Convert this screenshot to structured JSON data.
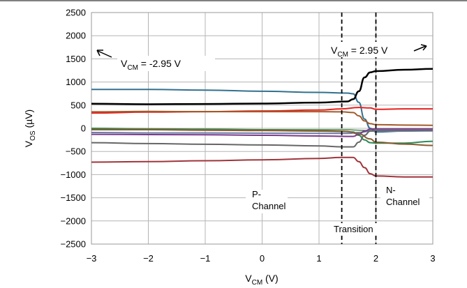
{
  "chart_data": {
    "type": "line",
    "xlabel_main": "V",
    "xlabel_sub": "CM",
    "xlabel_unit": " (V)",
    "ylabel_main": "V",
    "ylabel_sub": "OS",
    "ylabel_unit": " (µV)",
    "xlim": [
      -3,
      3
    ],
    "ylim": [
      -2500,
      2500
    ],
    "x_ticks": [
      -3,
      -2,
      -1,
      0,
      1,
      2,
      3
    ],
    "x_tick_labels": [
      "−3",
      "−2",
      "−1",
      "0",
      "1",
      "2",
      "3"
    ],
    "y_ticks": [
      2500,
      2000,
      1500,
      1000,
      500,
      0,
      -500,
      -1000,
      -1500,
      -2000,
      -2500
    ],
    "y_tick_labels": [
      "2500",
      "2000",
      "1500",
      "1000",
      "500",
      "0",
      "−500",
      "−1000",
      "−1500",
      "−2000",
      "−2500"
    ],
    "grid": true,
    "transition_lines_x": [
      1.4,
      2.0
    ],
    "annotations": {
      "left_main": "V",
      "left_sub": "CM",
      "left_value": " = -2.95 V",
      "right_main": "V",
      "right_sub": "CM",
      "right_value": " = 2.95 V",
      "p_line1": "P-",
      "p_line2": "Channel",
      "transition": "Transition",
      "n_line1": "N-",
      "n_line2": "Channel"
    },
    "series": [
      {
        "color": "#31708F",
        "width": 2,
        "points": [
          [
            -3,
            840
          ],
          [
            -2,
            840
          ],
          [
            -1,
            825
          ],
          [
            0,
            800
          ],
          [
            1,
            775
          ],
          [
            1.5,
            760
          ],
          [
            1.6,
            745
          ],
          [
            1.7,
            560
          ],
          [
            1.8,
            200
          ],
          [
            1.9,
            0
          ],
          [
            2.0,
            -80
          ],
          [
            2.5,
            -60
          ],
          [
            3,
            -50
          ]
        ]
      },
      {
        "color": "#000000",
        "width": 2.5,
        "points": [
          [
            -3,
            530
          ],
          [
            -2,
            520
          ],
          [
            -1,
            525
          ],
          [
            0,
            535
          ],
          [
            1,
            555
          ],
          [
            1.5,
            580
          ],
          [
            1.6,
            630
          ],
          [
            1.7,
            800
          ],
          [
            1.8,
            1100
          ],
          [
            1.9,
            1210
          ],
          [
            2.0,
            1235
          ],
          [
            2.5,
            1265
          ],
          [
            3,
            1285
          ]
        ]
      },
      {
        "color": "#E8201F",
        "width": 2,
        "points": [
          [
            -3,
            330
          ],
          [
            -2,
            350
          ],
          [
            -1,
            360
          ],
          [
            0,
            375
          ],
          [
            1,
            395
          ],
          [
            1.4,
            420
          ],
          [
            1.7,
            450
          ],
          [
            1.9,
            440
          ],
          [
            2.0,
            410
          ],
          [
            2.5,
            420
          ],
          [
            3,
            420
          ]
        ]
      },
      {
        "color": "#A35A28",
        "width": 2,
        "points": [
          [
            -3,
            355
          ],
          [
            -2,
            365
          ],
          [
            -1,
            360
          ],
          [
            0,
            360
          ],
          [
            1,
            360
          ],
          [
            1.4,
            355
          ],
          [
            1.6,
            340
          ],
          [
            1.7,
            270
          ],
          [
            1.8,
            160
          ],
          [
            1.9,
            100
          ],
          [
            2.0,
            80
          ],
          [
            2.5,
            70
          ],
          [
            3,
            65
          ]
        ]
      },
      {
        "color": "#2E8B57",
        "width": 2,
        "points": [
          [
            -3,
            0
          ],
          [
            -2,
            -10
          ],
          [
            -1,
            -20
          ],
          [
            0,
            -30
          ],
          [
            1,
            -50
          ],
          [
            1.4,
            -65
          ],
          [
            1.6,
            -80
          ],
          [
            1.7,
            -150
          ],
          [
            1.8,
            -250
          ],
          [
            1.9,
            -310
          ],
          [
            2.0,
            -320
          ],
          [
            2.5,
            -320
          ],
          [
            3,
            -280
          ]
        ]
      },
      {
        "color": "#4A8A4A",
        "width": 1.5,
        "points": [
          [
            -3,
            -20
          ],
          [
            -2,
            -20
          ],
          [
            -1,
            -25
          ],
          [
            0,
            -25
          ],
          [
            1,
            -30
          ],
          [
            1.5,
            -30
          ],
          [
            1.7,
            -40
          ],
          [
            1.9,
            -50
          ],
          [
            2.2,
            -50
          ],
          [
            3,
            -45
          ]
        ]
      },
      {
        "color": "#6B7AA8",
        "width": 2,
        "points": [
          [
            -3,
            -90
          ],
          [
            -2,
            -100
          ],
          [
            -1,
            -100
          ],
          [
            0,
            -105
          ],
          [
            1,
            -110
          ],
          [
            1.5,
            -110
          ],
          [
            1.7,
            -90
          ],
          [
            1.9,
            -60
          ],
          [
            2.1,
            -60
          ],
          [
            3,
            -55
          ]
        ]
      },
      {
        "color": "#7A3A8A",
        "width": 2,
        "points": [
          [
            -3,
            -130
          ],
          [
            -2,
            -135
          ],
          [
            -1,
            -140
          ],
          [
            0,
            -150
          ],
          [
            1,
            -165
          ],
          [
            1.5,
            -175
          ],
          [
            1.6,
            -175
          ],
          [
            1.7,
            -130
          ],
          [
            1.8,
            -60
          ],
          [
            1.9,
            -20
          ],
          [
            2.0,
            -10
          ],
          [
            3,
            -10
          ]
        ]
      },
      {
        "color": "#8A5A30",
        "width": 2,
        "points": [
          [
            -3,
            -30
          ],
          [
            -2,
            -30
          ],
          [
            -1,
            -40
          ],
          [
            0,
            -50
          ],
          [
            1,
            -60
          ],
          [
            1.5,
            -70
          ],
          [
            1.7,
            -120
          ],
          [
            1.9,
            -230
          ],
          [
            2.0,
            -300
          ],
          [
            2.5,
            -340
          ],
          [
            3,
            -370
          ]
        ]
      },
      {
        "color": "#666666",
        "width": 2,
        "points": [
          [
            -3,
            -310
          ],
          [
            -2,
            -330
          ],
          [
            -1,
            -345
          ],
          [
            0,
            -360
          ],
          [
            1,
            -380
          ],
          [
            1.4,
            -400
          ],
          [
            1.6,
            -400
          ],
          [
            1.7,
            -300
          ],
          [
            1.8,
            -150
          ],
          [
            1.9,
            -60
          ],
          [
            2.0,
            -40
          ],
          [
            3,
            -40
          ]
        ]
      },
      {
        "color": "#A0343A",
        "width": 2,
        "points": [
          [
            -3,
            -730
          ],
          [
            -2,
            -720
          ],
          [
            -1,
            -700
          ],
          [
            0,
            -680
          ],
          [
            1,
            -650
          ],
          [
            1.4,
            -630
          ],
          [
            1.6,
            -630
          ],
          [
            1.7,
            -720
          ],
          [
            1.8,
            -850
          ],
          [
            1.9,
            -980
          ],
          [
            2.0,
            -1030
          ],
          [
            2.5,
            -1050
          ],
          [
            3,
            -1050
          ]
        ]
      }
    ]
  }
}
